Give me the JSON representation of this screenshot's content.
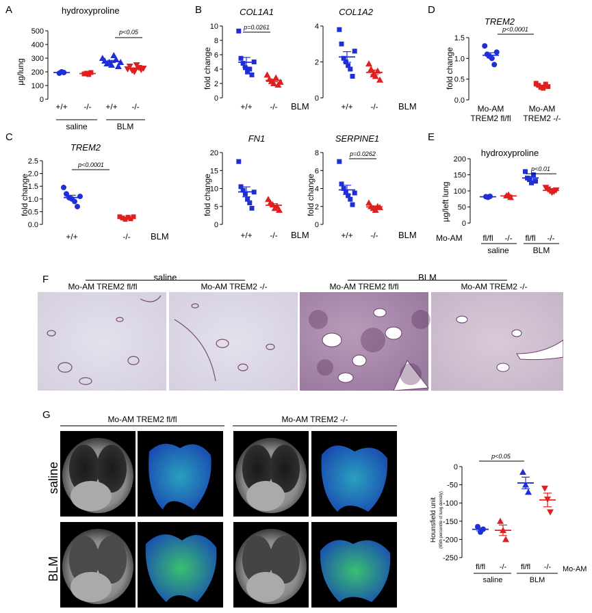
{
  "panels": {
    "A": {
      "letter": "A",
      "title": "hydroxyproline",
      "ylabel": "µg/lung",
      "yticks": [
        "0",
        "100",
        "200",
        "300",
        "400",
        "500"
      ],
      "xticks": [
        "+/+",
        "-/-",
        "+/+",
        "-/-"
      ],
      "groups": [
        "saline",
        "BLM"
      ],
      "pval": "p<0.05"
    },
    "B1": {
      "letter": "B",
      "title": "COL1A1",
      "ylabel": "fold change",
      "yticks": [
        "0",
        "2",
        "4",
        "6",
        "8",
        "10"
      ],
      "xticks": [
        "+/+",
        "-/-"
      ],
      "tail": "BLM",
      "pval": "p=0.0261"
    },
    "B2": {
      "title": "COL1A2",
      "yticks": [
        "0",
        "2",
        "4"
      ],
      "xticks": [
        "+/+",
        "-/-"
      ],
      "tail": "BLM"
    },
    "B3": {
      "title": "FN1",
      "ylabel": "fold change",
      "yticks": [
        "0",
        "5",
        "10",
        "15",
        "20"
      ],
      "xticks": [
        "+/+",
        "-/-"
      ],
      "tail": "BLM"
    },
    "B4": {
      "title": "SERPINE1",
      "ylabel": "fold change",
      "yticks": [
        "0",
        "2",
        "4",
        "6",
        "8"
      ],
      "xticks": [
        "+/+",
        "-/-"
      ],
      "tail": "BLM",
      "pval": "p=0.0262"
    },
    "C": {
      "letter": "C",
      "title": "TREM2",
      "ylabel": "fold change",
      "yticks": [
        "0.0",
        "0.5",
        "1.0",
        "1.5",
        "2.0",
        "2.5"
      ],
      "xticks": [
        "+/+",
        "-/-"
      ],
      "tail": "BLM",
      "pval": "p<0.0001"
    },
    "D": {
      "letter": "D",
      "title": "TREM2",
      "ylabel": "fold change",
      "yticks": [
        "0.0",
        "0.5",
        "1.0",
        "1.5"
      ],
      "xticks": [
        "Mo-AM",
        "Mo-AM"
      ],
      "xticks2": [
        "TREM2 fl/fl",
        "TREM2 -/-"
      ],
      "pval": "p<0.0001"
    },
    "E": {
      "letter": "E",
      "title": "hydroxyproline",
      "ylabel": "µg/left lung",
      "yticks": [
        "0",
        "50",
        "100",
        "150",
        "200"
      ],
      "rowlabel": "Mo-AM",
      "xticks": [
        "fl/fl",
        "-/-",
        "fl/fl",
        "-/-"
      ],
      "groups": [
        "saline",
        "BLM"
      ],
      "pval": "p<0.01"
    },
    "F": {
      "letter": "F",
      "groups": [
        "saline",
        "BLM"
      ],
      "images": [
        "Mo-AM TREM2 fl/fl",
        "Mo-AM TREM2 -/-",
        "Mo-AM TREM2 fl/fl",
        "Mo-AM TREM2 -/-"
      ]
    },
    "G": {
      "letter": "G",
      "headers": [
        "Mo-AM TREM2 fl/fl",
        "Mo-AM TREM2 -/-"
      ],
      "rows": [
        "saline",
        "BLM"
      ],
      "chart": {
        "ylabel": "Hounsfield unit",
        "ylabel2": "(85th percentile of lung density)",
        "yticks": [
          "0",
          "-50",
          "-100",
          "-150",
          "-200",
          "-250"
        ],
        "xticks": [
          "fl/fl",
          "-/-",
          "fl/fl",
          "-/-"
        ],
        "rowlabel": "Mo-AM",
        "groups": [
          "saline",
          "BLM"
        ],
        "pval": "p<0.05"
      }
    }
  },
  "colors": {
    "blue": "#1f2fd6",
    "red": "#e0201f"
  },
  "chart_data": [
    {
      "type": "scatter",
      "panel": "A",
      "title": "hydroxyproline",
      "ylabel": "µg/lung",
      "ylim": [
        0,
        500
      ],
      "categories": [
        "saline +/+",
        "saline -/-",
        "BLM +/+",
        "BLM -/-"
      ],
      "values": [
        [
          190,
          200,
          195
        ],
        [
          185,
          190,
          180,
          195
        ],
        [
          300,
          280,
          260,
          270,
          250,
          320,
          290,
          240,
          270
        ],
        [
          220,
          240,
          210,
          200,
          250,
          230,
          215,
          225
        ]
      ]
    },
    {
      "type": "scatter",
      "panel": "B",
      "title": "COL1A1",
      "ylabel": "fold change",
      "ylim": [
        0,
        10
      ],
      "categories": [
        "+/+",
        "-/-"
      ],
      "values": [
        [
          9.3,
          5.5,
          4.8,
          4.2,
          3.6,
          4.0,
          3.2,
          5.0
        ],
        [
          3.2,
          2.6,
          2.3,
          2.0,
          2.8,
          1.8,
          2.2
        ]
      ]
    },
    {
      "type": "scatter",
      "panel": "B",
      "title": "COL1A2",
      "ylim": [
        0,
        4
      ],
      "categories": [
        "+/+",
        "-/-"
      ],
      "values": [
        [
          3.8,
          3.0,
          2.2,
          2.0,
          1.8,
          1.6,
          1.2,
          2.6
        ],
        [
          1.9,
          1.6,
          1.3,
          1.2,
          1.5,
          1.0
        ]
      ]
    },
    {
      "type": "scatter",
      "panel": "B",
      "title": "FN1",
      "ylabel": "fold change",
      "ylim": [
        0,
        20
      ],
      "categories": [
        "+/+",
        "-/-"
      ],
      "values": [
        [
          17.5,
          10.5,
          9.5,
          8.5,
          7.0,
          6.0,
          4.5,
          9.0
        ],
        [
          7.0,
          6.0,
          5.5,
          4.5,
          5.0,
          4.0
        ]
      ]
    },
    {
      "type": "scatter",
      "panel": "B",
      "title": "SERPINE1",
      "ylabel": "fold change",
      "ylim": [
        0,
        8
      ],
      "categories": [
        "+/+",
        "-/-"
      ],
      "values": [
        [
          7.0,
          4.5,
          4.0,
          3.6,
          3.2,
          2.8,
          2.2,
          3.5
        ],
        [
          2.4,
          2.0,
          1.8,
          1.6,
          2.0,
          1.9
        ]
      ]
    },
    {
      "type": "scatter",
      "panel": "C",
      "title": "TREM2",
      "ylabel": "fold change",
      "ylim": [
        0,
        2.5
      ],
      "categories": [
        "+/+",
        "-/-"
      ],
      "values": [
        [
          1.45,
          1.2,
          1.05,
          1.0,
          0.9,
          0.7,
          1.1
        ],
        [
          0.3,
          0.25,
          0.2,
          0.28,
          0.22,
          0.3
        ]
      ]
    },
    {
      "type": "scatter",
      "panel": "D",
      "title": "TREM2",
      "ylabel": "fold change",
      "ylim": [
        0,
        1.5
      ],
      "categories": [
        "Mo-AM TREM2 fl/fl",
        "Mo-AM TREM2 -/-"
      ],
      "values": [
        [
          1.3,
          1.1,
          1.05,
          1.0,
          0.85,
          1.15
        ],
        [
          0.4,
          0.35,
          0.3,
          0.28,
          0.38,
          0.32
        ]
      ]
    },
    {
      "type": "scatter",
      "panel": "E",
      "title": "hydroxyproline",
      "ylabel": "µg/left lung",
      "ylim": [
        0,
        200
      ],
      "categories": [
        "saline fl/fl",
        "saline -/-",
        "BLM fl/fl",
        "BLM -/-"
      ],
      "values": [
        [
          82,
          80,
          83
        ],
        [
          85,
          88,
          80
        ],
        [
          160,
          140,
          135,
          125,
          150,
          130
        ],
        [
          110,
          105,
          100,
          95,
          98,
          102
        ]
      ]
    },
    {
      "type": "scatter",
      "panel": "G",
      "ylabel": "Hounsfield unit",
      "ylim": [
        -250,
        0
      ],
      "categories": [
        "saline fl/fl",
        "saline -/-",
        "BLM fl/fl",
        "BLM -/-"
      ],
      "values": [
        [
          -165,
          -180,
          -172
        ],
        [
          -150,
          -175,
          -200
        ],
        [
          -15,
          -50,
          -70
        ],
        [
          -60,
          -90,
          -125
        ]
      ]
    }
  ]
}
